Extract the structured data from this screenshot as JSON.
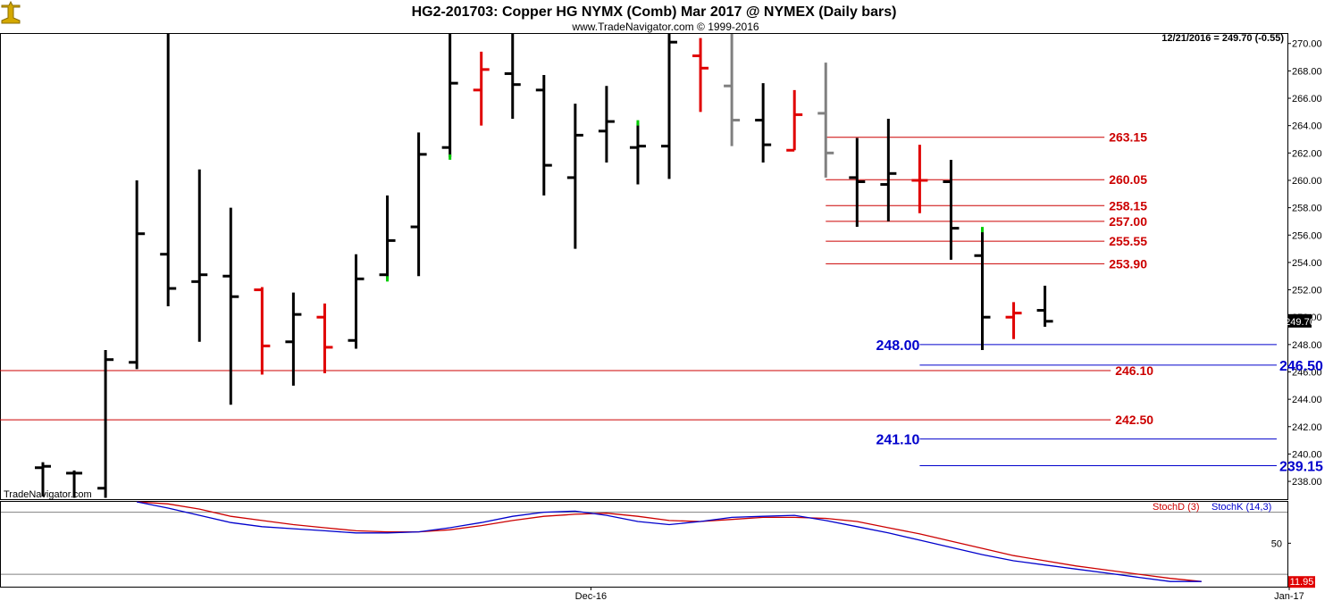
{
  "header": {
    "title": "HG2-201703:  Copper HG NYMX (Comb) Mar 2017 @ NYMEX  (Daily bars)",
    "subtitle": "www.TradeNavigator.com © 1999-2016"
  },
  "watermark": "TradeNavigator.com",
  "colors": {
    "up_bar": "#000000",
    "down_bar": "#e00000",
    "neutral_bar": "#808080",
    "green_tick": "#00cc00",
    "red_level": "#cc0000",
    "blue_level": "#0000cc",
    "stoch_k": "#0000cc",
    "stoch_d": "#cc0000"
  },
  "chart_data": [
    {
      "type": "ohlc",
      "title": "HG2-201703:  Copper HG NYMX (Comb) Mar 2017 @ NYMEX  (Daily bars)",
      "readout": "12/21/2016 = 249.70 (-0.55)",
      "last_price_label": "249.70",
      "ylim": [
        236.7,
        270.7
      ],
      "yticks": [
        "238.00",
        "240.00",
        "242.00",
        "244.00",
        "246.00",
        "248.00",
        "250.00",
        "252.00",
        "254.00",
        "256.00",
        "258.00",
        "260.00",
        "262.00",
        "264.00",
        "266.00",
        "268.00",
        "270.00"
      ],
      "xticks": [
        {
          "label": "Dec-16",
          "index": 17.5
        },
        {
          "label": "Jan-17",
          "index": 39.8
        }
      ],
      "bars": [
        {
          "o": 239.0,
          "h": 239.4,
          "l": 236.9,
          "c": 239.1,
          "color": "up"
        },
        {
          "o": 238.6,
          "h": 238.8,
          "l": 236.8,
          "c": 238.6,
          "color": "up"
        },
        {
          "o": 237.5,
          "h": 247.6,
          "l": 236.8,
          "c": 246.9,
          "color": "up"
        },
        {
          "o": 246.7,
          "h": 260.0,
          "l": 246.2,
          "c": 256.1,
          "color": "up"
        },
        {
          "o": 254.6,
          "h": 271.0,
          "l": 250.8,
          "c": 252.1,
          "color": "up"
        },
        {
          "o": 252.6,
          "h": 260.8,
          "l": 248.2,
          "c": 253.1,
          "color": "up"
        },
        {
          "o": 253.0,
          "h": 258.0,
          "l": 243.6,
          "c": 251.5,
          "color": "up"
        },
        {
          "o": 252.0,
          "h": 252.2,
          "l": 245.8,
          "c": 247.9,
          "color": "down"
        },
        {
          "o": 248.2,
          "h": 251.8,
          "l": 245.0,
          "c": 250.2,
          "color": "up"
        },
        {
          "o": 250.0,
          "h": 251.0,
          "l": 245.9,
          "c": 247.8,
          "color": "down"
        },
        {
          "o": 248.3,
          "h": 254.6,
          "l": 247.7,
          "c": 252.8,
          "color": "up"
        },
        {
          "o": 253.1,
          "h": 258.9,
          "l": 252.8,
          "c": 255.6,
          "color": "up",
          "tick": "green"
        },
        {
          "o": 256.6,
          "h": 263.5,
          "l": 253.0,
          "c": 261.9,
          "color": "up"
        },
        {
          "o": 262.4,
          "h": 271.0,
          "l": 261.7,
          "c": 267.1,
          "color": "up",
          "tick": "green"
        },
        {
          "o": 266.6,
          "h": 269.4,
          "l": 264.0,
          "c": 268.1,
          "color": "down"
        },
        {
          "o": 267.8,
          "h": 271.0,
          "l": 264.5,
          "c": 267.0,
          "color": "up"
        },
        {
          "o": 266.6,
          "h": 267.7,
          "l": 258.9,
          "c": 261.1,
          "color": "up"
        },
        {
          "o": 260.2,
          "h": 265.6,
          "l": 255.0,
          "c": 263.3,
          "color": "up"
        },
        {
          "o": 263.6,
          "h": 266.9,
          "l": 261.3,
          "c": 264.3,
          "color": "up"
        },
        {
          "o": 262.4,
          "h": 264.2,
          "l": 259.7,
          "c": 262.5,
          "color": "up",
          "tick": "green"
        },
        {
          "o": 262.5,
          "h": 271.0,
          "l": 260.1,
          "c": 270.1,
          "color": "up"
        },
        {
          "o": 269.1,
          "h": 270.4,
          "l": 265.0,
          "c": 268.2,
          "color": "down"
        },
        {
          "o": 266.9,
          "h": 271.0,
          "l": 262.5,
          "c": 264.4,
          "color": "neutral"
        },
        {
          "o": 264.4,
          "h": 267.1,
          "l": 261.3,
          "c": 262.6,
          "color": "up"
        },
        {
          "o": 262.2,
          "h": 266.6,
          "l": 262.2,
          "c": 264.8,
          "color": "down"
        },
        {
          "o": 264.9,
          "h": 268.6,
          "l": 260.2,
          "c": 262.0,
          "color": "neutral"
        },
        {
          "o": 260.2,
          "h": 263.1,
          "l": 256.6,
          "c": 259.9,
          "color": "up"
        },
        {
          "o": 259.7,
          "h": 264.5,
          "l": 257.0,
          "c": 260.5,
          "color": "up"
        },
        {
          "o": 260.0,
          "h": 262.6,
          "l": 257.6,
          "c": 260.0,
          "color": "down"
        },
        {
          "o": 259.9,
          "h": 261.5,
          "l": 254.2,
          "c": 256.5,
          "color": "up"
        },
        {
          "o": 254.5,
          "h": 256.4,
          "l": 247.6,
          "c": 250.0,
          "color": "up",
          "tick": "green"
        },
        {
          "o": 250.0,
          "h": 251.1,
          "l": 248.4,
          "c": 250.3,
          "color": "down"
        },
        {
          "o": 250.5,
          "h": 252.3,
          "l": 249.3,
          "c": 249.7,
          "color": "up"
        }
      ],
      "red_levels": [
        {
          "label": "263.15",
          "value": 263.15,
          "from": 25.0,
          "to": 33.9
        },
        {
          "label": "260.05",
          "value": 260.05,
          "from": 25.0,
          "to": 33.9
        },
        {
          "label": "258.15",
          "value": 258.15,
          "from": 25.0,
          "to": 33.9
        },
        {
          "label": "257.00",
          "value": 257.0,
          "from": 25.0,
          "to": 33.9
        },
        {
          "label": "255.55",
          "value": 255.55,
          "from": 25.0,
          "to": 33.9
        },
        {
          "label": "253.90",
          "value": 253.9,
          "from": 25.0,
          "to": 33.9
        },
        {
          "label": "246.10",
          "value": 246.1,
          "from": -1.5,
          "to": 34.1
        },
        {
          "label": "242.50",
          "value": 242.5,
          "from": -1.5,
          "to": 34.1
        }
      ],
      "blue_levels": [
        {
          "label": "248.00",
          "value": 248.0,
          "from": 28.0,
          "to": 39.4,
          "label_side": "left"
        },
        {
          "label": "246.50",
          "value": 246.5,
          "from": 28.0,
          "to": 39.4,
          "label_side": "right"
        },
        {
          "label": "241.10",
          "value": 241.1,
          "from": 28.0,
          "to": 39.4,
          "label_side": "left"
        },
        {
          "label": "239.15",
          "value": 239.15,
          "from": 28.0,
          "to": 39.4,
          "label_side": "right"
        }
      ]
    },
    {
      "type": "line",
      "legend": [
        {
          "name": "StochD (3)",
          "color": "#cc0000"
        },
        {
          "name": "StochK (14,3)",
          "color": "#0000cc"
        }
      ],
      "ylim": [
        8,
        90
      ],
      "yticks": [
        "50"
      ],
      "gridlines": [
        80,
        20
      ],
      "last_value_label": "11.95",
      "series": [
        {
          "name": "StochK (14,3)",
          "start_index": 3,
          "values": [
            90,
            84,
            77,
            70,
            66,
            64,
            62,
            60,
            60,
            61,
            65,
            70,
            76,
            80,
            81,
            77,
            71,
            68,
            71,
            75,
            76,
            77,
            72,
            66,
            60,
            53,
            46,
            39,
            33,
            29,
            25,
            21,
            17,
            13,
            13
          ]
        },
        {
          "name": "StochD (3)",
          "start_index": 3,
          "values": [
            92,
            88,
            83,
            76,
            72,
            68,
            65,
            62,
            61,
            61,
            63,
            67,
            72,
            76,
            78,
            79,
            76,
            72,
            71,
            73,
            75,
            75,
            74,
            71,
            65,
            59,
            52,
            45,
            38,
            33,
            28,
            24,
            20,
            16,
            13
          ]
        }
      ]
    }
  ]
}
